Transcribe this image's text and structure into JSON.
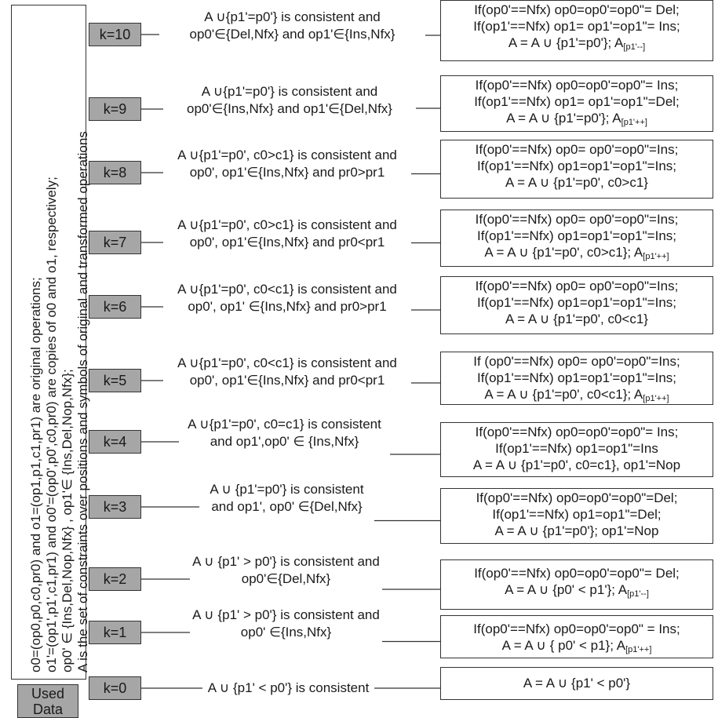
{
  "side_panel": {
    "lines": [
      "o0=(op0,p0,c0,pr0) and o1=(op1,p1,c1,pr1) are original operations;",
      "o1'=(op1',p1',c1,pr1) and o0'=(op0',p0',c0,pr0) are copies of o0 and o1, respectively;",
      "op0' ∈ {Ins,Del,Nop,Nfx} , op1'∈ {Ins,Del,Nop,Nfx};",
      "A is the set of constraints over positions and symbols of original and transformed operations"
    ]
  },
  "used_data": {
    "line1": "Used",
    "line2": "Data"
  },
  "rows": [
    {
      "k": "k=10",
      "cond": [
        "A ∪{p1'=p0'} is consistent and",
        "op0'∈{Del,Nfx} and op1'∈{Ins,Nfx}"
      ],
      "action": [
        "If(op0'==Nfx) op0=op0'=op0\"= Del;",
        "If(op1'==Nfx) op1= op1'=op1\"= Ins;",
        "A = A ∪ {p1'=p0'}; A"
      ],
      "sub": "[p1'--]"
    },
    {
      "k": "k=9",
      "cond": [
        "A ∪{p1'=p0'} is consistent and",
        "op0'∈{Ins,Nfx} and op1'∈{Del,Nfx}"
      ],
      "action": [
        "If(op0'==Nfx) op0=op0'=op0\"= Ins;",
        "If(op1'==Nfx) op1= op1'=op1\"=Del;",
        "A = A ∪ {p1'=p0'}; A"
      ],
      "sub": "[p1'++]"
    },
    {
      "k": "k=8",
      "cond": [
        "A ∪{p1'=p0', c0>c1} is consistent  and",
        "op0', op1'∈{Ins,Nfx}  and pr0>pr1"
      ],
      "action": [
        "If(op0'==Nfx) op0= op0'=op0\"=Ins;",
        "If(op1'==Nfx) op1=op1'=op1\"=Ins;",
        "A = A ∪ {p1'=p0', c0>c1}"
      ],
      "sub": ""
    },
    {
      "k": "k=7",
      "cond": [
        "A ∪{p1'=p0', c0>c1} is consistent  and",
        "op0', op1'∈{Ins,Nfx}  and pr0<pr1"
      ],
      "action": [
        "If(op0'==Nfx) op0= op0'=op0\"=Ins;",
        "If(op1'==Nfx) op1=op1'=op1\"=Ins;",
        "A = A ∪ {p1'=p0', c0>c1}; A"
      ],
      "sub": "[p1'++]"
    },
    {
      "k": "k=6",
      "cond": [
        "A ∪{p1'=p0', c0<c1} is consistent  and",
        "op0', op1' ∈{Ins,Nfx} and pr0>pr1"
      ],
      "action": [
        "If(op0'==Nfx) op0= op0'=op0\"=Ins;",
        "If(op1'==Nfx)  op1=op1'=op1\"=Ins;",
        "A = A ∪ {p1'=p0', c0<c1}"
      ],
      "sub": ""
    },
    {
      "k": "k=5",
      "cond": [
        "A ∪{p1'=p0', c0<c1} is consistent  and",
        "op0', op1'∈{Ins,Nfx} and pr0<pr1"
      ],
      "action": [
        "If (op0'==Nfx)  op0= op0'=op0\"=Ins;",
        "If(op1'==Nfx) op1=op1'=op1\"=Ins;",
        "A = A ∪ {p1'=p0', c0<c1}; A"
      ],
      "sub": "[p1'++]"
    },
    {
      "k": "k=4",
      "cond": [
        "A ∪{p1'=p0', c0=c1} is consistent",
        "and op1',op0' ∈ {Ins,Nfx}"
      ],
      "action": [
        "If(op0'==Nfx)  op0=op0'=op0\"= Ins;",
        "If(op1'==Nfx) op1=op1\"=Ins",
        "A = A ∪ {p1'=p0', c0=c1}, op1'=Nop"
      ],
      "sub": ""
    },
    {
      "k": "k=3",
      "cond": [
        "A ∪ {p1'=p0'} is consistent",
        "and op1', op0' ∈{Del,Nfx}"
      ],
      "action": [
        "If(op0'==Nfx)  op0=op0'=op0\"=Del;",
        "If(op1'==Nfx) op1=op1\"=Del;",
        "A = A ∪ {p1'=p0'}; op1'=Nop"
      ],
      "sub": ""
    },
    {
      "k": "k=2",
      "cond": [
        "A ∪ {p1' > p0'} is consistent and",
        "op0'∈{Del,Nfx}"
      ],
      "action": [
        "If(op0'==Nfx) op0=op0'=op0\"= Del;",
        "A = A ∪  {p0' < p1'}; A"
      ],
      "sub": "[p1'--]"
    },
    {
      "k": "k=1",
      "cond": [
        "A ∪ {p1' > p0'} is consistent and",
        "op0' ∈{Ins,Nfx}"
      ],
      "action": [
        "If(op0'==Nfx) op0=op0'=op0\" = Ins;",
        "A = A ∪ { p0' < p1};  A"
      ],
      "sub": "[p1'++]"
    },
    {
      "k": "k=0",
      "cond": [
        "A ∪ {p1' < p0'} is consistent"
      ],
      "action": [
        "A = A ∪ {p1' < p0'}"
      ],
      "sub": ""
    }
  ]
}
